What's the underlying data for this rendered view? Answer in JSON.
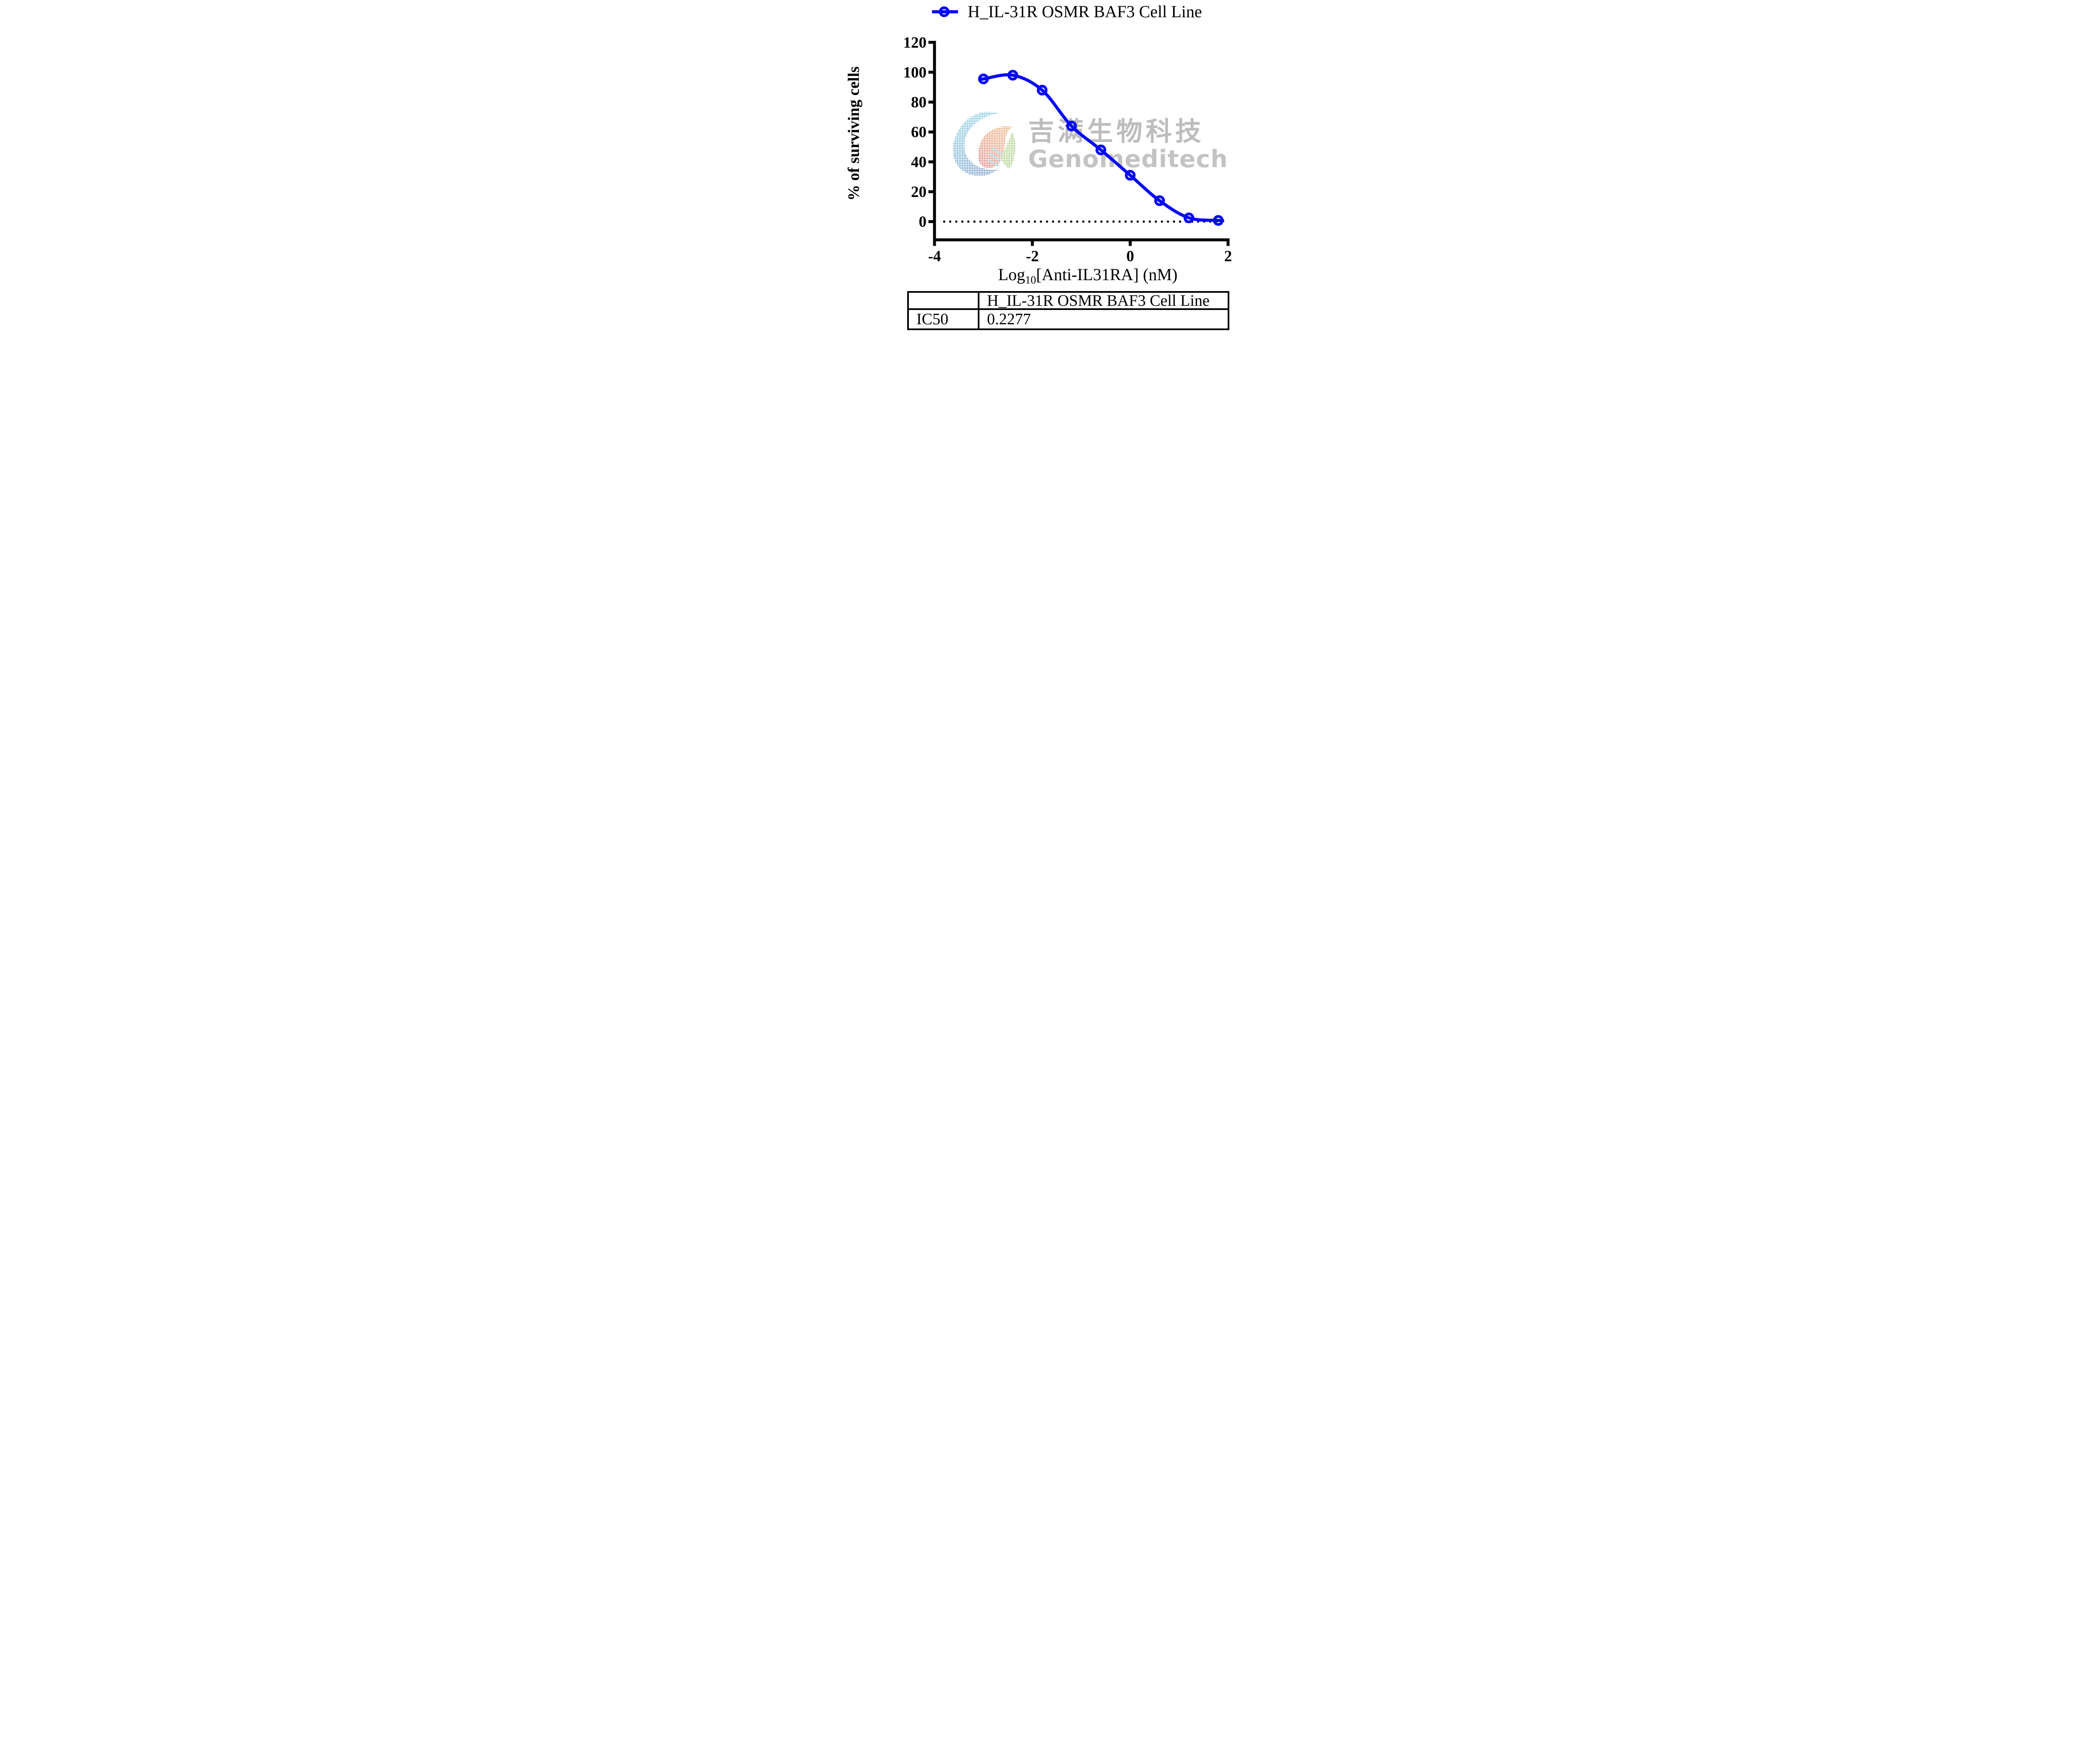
{
  "legend": {
    "label": "H_IL-31R OSMR BAF3 Cell Line",
    "marker": "open-circle-on-line",
    "color": "#0808F5"
  },
  "chart_data": {
    "type": "scatter",
    "subtype": "dose-response-curve",
    "title": "",
    "xlabel": "Log10[Anti-IL31RA] (nM)",
    "xlabel_parts": {
      "prefix": "Log",
      "subscript": "10",
      "suffix": "[Anti-IL31RA] (nM)"
    },
    "ylabel": "% of surviving cells",
    "xlim": [
      -4,
      2
    ],
    "ylim": [
      -12.2,
      120
    ],
    "xticks": [
      -4,
      -2,
      0,
      2
    ],
    "yticks": [
      0,
      20,
      40,
      60,
      80,
      100,
      120
    ],
    "grid": false,
    "legend_position": "top-center",
    "zero_reference_line": {
      "y": 0,
      "style": "dotted",
      "color": "#000000"
    },
    "series": [
      {
        "name": "H_IL-31R OSMR BAF3 Cell Line",
        "color": "#0808F5",
        "marker": "open-circle",
        "line": "smooth-fit-curve",
        "points": [
          {
            "x": -3.0,
            "y": 95.5
          },
          {
            "x": -2.4,
            "y": 98.0
          },
          {
            "x": -1.8,
            "y": 88.0
          },
          {
            "x": -1.2,
            "y": 64.0
          },
          {
            "x": -0.6,
            "y": 48.0
          },
          {
            "x": 0.0,
            "y": 31.0
          },
          {
            "x": 0.6,
            "y": 14.0
          },
          {
            "x": 1.2,
            "y": 2.5
          },
          {
            "x": 1.8,
            "y": 0.8
          }
        ]
      }
    ]
  },
  "results_table": {
    "columns": [
      "",
      "H_IL-31R OSMR BAF3 Cell Line"
    ],
    "rows": [
      {
        "label": "IC50",
        "value": "0.2277"
      }
    ]
  },
  "watermark": {
    "cn_text": "吉满生物科技",
    "en_text": "Genomeditech",
    "text_color": "#8a8a8a",
    "logo_colors": {
      "teal": "#2f9fc0",
      "blue": "#1f5fa8",
      "red": "#c8282d",
      "orange": "#e07a28",
      "green": "#7cb342"
    }
  }
}
